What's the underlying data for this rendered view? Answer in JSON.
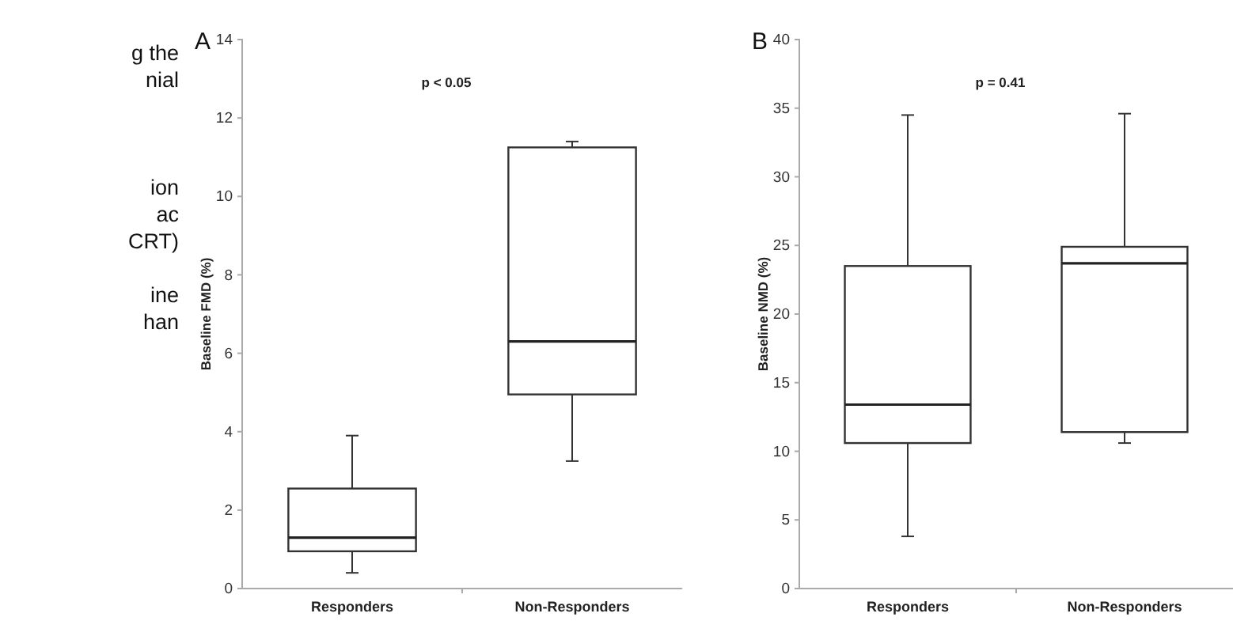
{
  "chart_data": [
    {
      "type": "other",
      "annotations": [
        "g the",
        "nial",
        "ion",
        "ac",
        "CRT)",
        "ine",
        "han"
      ]
    },
    {
      "type": "box",
      "title": "A",
      "ylabel": "Baseline FMD (%)",
      "categories": [
        "Responders",
        "Non-Responders"
      ],
      "ylim": [
        0,
        14
      ],
      "yticks": [
        0,
        2,
        4,
        6,
        8,
        10,
        12,
        14
      ],
      "annotations": [
        "p < 0.05"
      ],
      "boxes": [
        {
          "low": 0.4,
          "q1": 0.95,
          "median": 1.3,
          "q3": 2.55,
          "high": 3.9
        },
        {
          "low": 3.25,
          "q1": 4.95,
          "median": 6.3,
          "q3": 11.25,
          "high": 11.4
        }
      ]
    },
    {
      "type": "box",
      "title": "B",
      "ylabel": "Baseline NMD (%)",
      "categories": [
        "Responders",
        "Non-Responders"
      ],
      "ylim": [
        0,
        40
      ],
      "yticks": [
        0,
        5,
        10,
        15,
        20,
        25,
        30,
        35,
        40
      ],
      "annotations": [
        "p = 0.41"
      ],
      "boxes": [
        {
          "low": 3.8,
          "q1": 10.6,
          "median": 13.4,
          "q3": 23.5,
          "high": 34.5
        },
        {
          "low": 10.6,
          "q1": 11.4,
          "median": 23.7,
          "q3": 24.9,
          "high": 34.6
        }
      ]
    }
  ]
}
